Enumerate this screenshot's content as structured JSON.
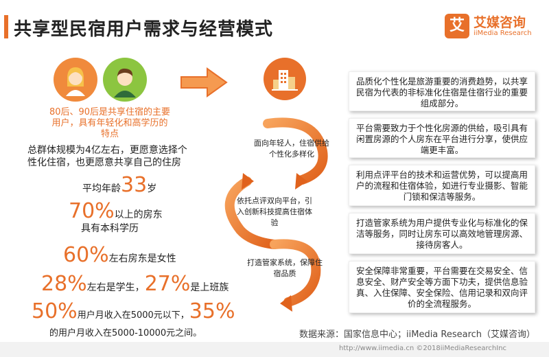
{
  "header": {
    "title": "共享型民宿用户需求与经营模式"
  },
  "logo": {
    "mark": "艾",
    "name_cn": "艾媒咨询",
    "name_en": "iiMedia Research"
  },
  "left": {
    "intro": "80后、90后是共享住宿的主要用户，具有年轻化和高学历的特点",
    "description": "总群体规模为4亿左右，更愿意选择个性化住宿，也更愿意共享自己的住房",
    "stats": {
      "age_prefix": "平均年龄",
      "age_value": "33",
      "age_suffix": "岁",
      "edu_value": "70%",
      "edu_text1": "以上的房东",
      "edu_text2": "具有本科学历",
      "female_value": "60%",
      "female_text": "左右房东是女性",
      "student_value": "28%",
      "student_text": "左右是学生，",
      "worker_value": "27%",
      "worker_text": "是上班族",
      "income1_value": "50%",
      "income1_text": "用户月收入在5000元以下，",
      "income2_value": "35%",
      "income2_text": "的用户月收入在5000-10000元之间。"
    }
  },
  "flow": {
    "steps": [
      "面向年轻人，住宿供给个性化多样化",
      "依托点评双向平台，引入创新科技提高住宿体验",
      "打造管家系统，保障住宿品质"
    ]
  },
  "boxes": [
    "品质化个性化是旅游重要的消费趋势，以共享民宿为代表的非标准化住宿是住宿行业的重要组成部分。",
    "平台需要致力于个性化房源的供给，吸引具有闲置房源的个人房东在平台进行分享，使供应端更丰富。",
    "利用点评平台的技术和运营优势，可以提高用户的流程和住宿体验，如进行专业摄影、智能门锁和保洁等服务。",
    "打造管家系统为用户提供专业化与标准化的保洁等服务，同时让房东可以高效地管理房源、接待房客人。",
    "安全保障非常重要，平台需要在交易安全、信息安全、财产安全等方面下功夫，提供信息验真、入住保障、安全保险、信用记录和双向评价的全流程服务。"
  ],
  "source": "数据来源：国家信息中心；iiMedia Research（艾媒咨询）",
  "footer": "http://www.iimedia.cn  ©2018iiMediaResearchInc",
  "colors": {
    "accent": "#e8702a",
    "green": "#8cc540"
  }
}
